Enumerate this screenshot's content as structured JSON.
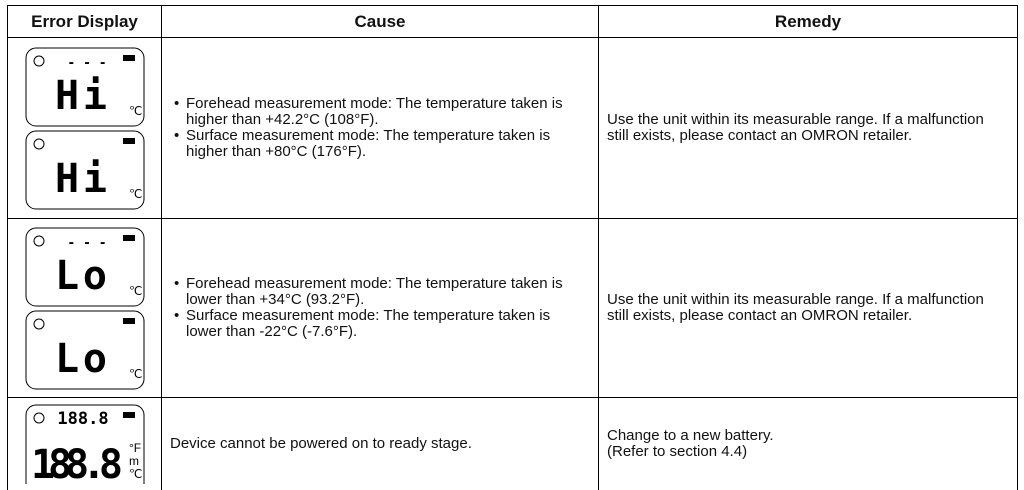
{
  "table": {
    "header": [
      "Error Display",
      "Cause",
      "Remedy"
    ],
    "rows": [
      {
        "displays": [
          {
            "indicator": "- - -",
            "main": "Hi",
            "unit": "℃"
          },
          {
            "main": "Hi",
            "unit": "℃"
          }
        ],
        "cause": [
          "Forehead measurement mode: The temperature taken is higher than +42.2°C (108°F).",
          "Surface measurement mode: The temperature taken is higher than +80°C (176°F)."
        ],
        "remedy": [
          "Use the unit within its measurable range. If a malfunction still exists, please contact an OMRON retailer."
        ]
      },
      {
        "displays": [
          {
            "indicator": "- - -",
            "main": "Lo",
            "unit": "℃"
          },
          {
            "main": "Lo",
            "unit": "℃"
          }
        ],
        "cause": [
          "Forehead measurement mode: The temperature taken is lower than +34°C (93.2°F).",
          "Surface measurement mode: The temperature taken is lower than -22°C (-7.6°F)."
        ],
        "remedy": [
          "Use the unit within its measurable range. If a malfunction still exists, please contact an OMRON retailer."
        ]
      },
      {
        "displays": [
          {
            "indicator": "188.8",
            "main": "188.8",
            "units": [
              "°F",
              "m",
              "℃"
            ]
          }
        ],
        "cause_text": "Device cannot be powered on to ready stage.",
        "remedy": [
          "Change to a new battery.",
          "(Refer to section 4.4)"
        ]
      }
    ]
  }
}
